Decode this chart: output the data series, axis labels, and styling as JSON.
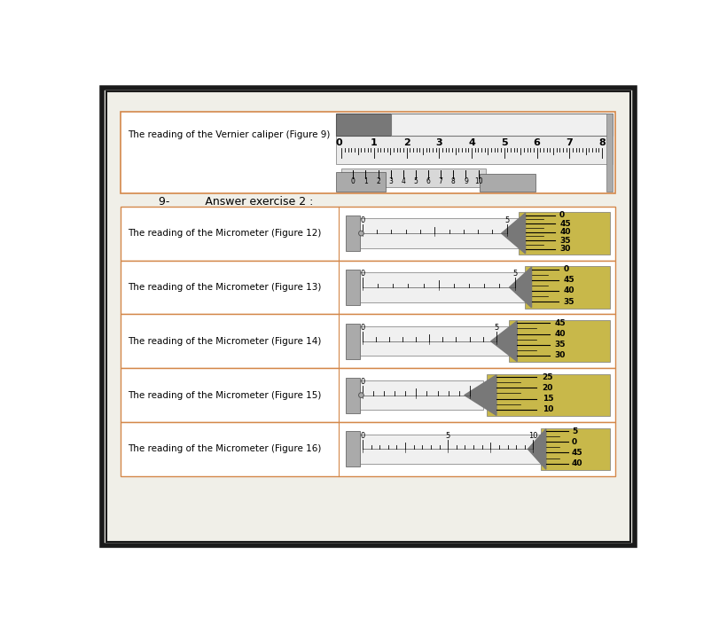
{
  "bg_color": "#ffffff",
  "outer_border_color": "#1a1a1a",
  "page_bg": "#f0efe8",
  "box_border_color": "#d4884a",
  "title_text": "9-          Answer exercise 2 :",
  "vernier_label": "The reading of the Vernier caliper (Figure 9)",
  "micro_labels": [
    "The reading of the Micrometer (Figure 12)",
    "The reading of the Micrometer (Figure 13)",
    "The reading of the Micrometer (Figure 14)",
    "The reading of the Micrometer (Figure 15)",
    "The reading of the Micrometer (Figure 16)"
  ],
  "micro12_sleeve_labels": [
    "0",
    "5"
  ],
  "micro12_thimble_labels": [
    "0",
    "45",
    "40",
    "35",
    "30"
  ],
  "micro13_sleeve_labels": [
    "0",
    "5"
  ],
  "micro13_thimble_labels": [
    "0",
    "45",
    "40",
    "35"
  ],
  "micro14_sleeve_labels": [
    "0",
    "5"
  ],
  "micro14_thimble_labels": [
    "45",
    "40",
    "35",
    "30"
  ],
  "micro15_sleeve_labels": [
    "0"
  ],
  "micro15_thimble_labels": [
    "25",
    "20",
    "15",
    "10"
  ],
  "micro16_sleeve_labels": [
    "0",
    "5",
    "10"
  ],
  "micro16_thimble_labels": [
    "5",
    "0",
    "45",
    "40"
  ],
  "vernier_main_labels": [
    "1",
    "2",
    "3",
    "4",
    "5",
    "6",
    "7",
    "8"
  ],
  "vernier_vernier_labels": [
    "0",
    "1",
    "2",
    "3",
    "4",
    "5",
    "6",
    "7",
    "8",
    "9",
    "10"
  ],
  "gold_color": "#c8b84a",
  "gold_light": "#d4c86a",
  "gray_lightest": "#f0f0f0",
  "gray_light": "#d0d0d0",
  "gray_mid": "#aaaaaa",
  "gray_dark": "#787878",
  "gray_darkest": "#555555"
}
